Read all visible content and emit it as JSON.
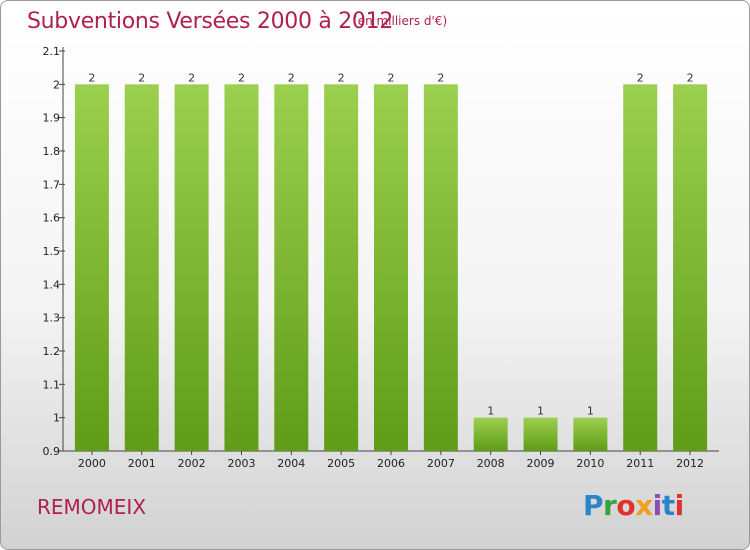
{
  "header": {
    "title": "Subventions Versées 2000 à 2012",
    "unit": "(en milliers d'€)"
  },
  "footer": {
    "commune": "REMOMEIX",
    "logo": "Proxiti",
    "logo_icon": "proxiti-logo-icon"
  },
  "colors": {
    "bar_top": "#9bd04e",
    "bar_bottom": "#5f9c18",
    "title": "#b0204e"
  },
  "chart_data": {
    "type": "bar",
    "categories": [
      "2000",
      "2001",
      "2002",
      "2003",
      "2004",
      "2005",
      "2006",
      "2007",
      "2008",
      "2009",
      "2010",
      "2011",
      "2012"
    ],
    "values": [
      2,
      2,
      2,
      2,
      2,
      2,
      2,
      2,
      1,
      1,
      1,
      2,
      2
    ],
    "data_labels": [
      "2",
      "2",
      "2",
      "2",
      "2",
      "2",
      "2",
      "2",
      "1",
      "1",
      "1",
      "2",
      "2"
    ],
    "title": "Subventions Versées 2000 à 2012",
    "xlabel": "",
    "ylabel": "",
    "ylim": [
      0.9,
      2.1
    ],
    "yticks": [
      0.9,
      1,
      1.1,
      1.2,
      1.3,
      1.4,
      1.5,
      1.6,
      1.7,
      1.8,
      1.9,
      2,
      2.1
    ],
    "ytick_labels": [
      "0.9",
      "1",
      "1.1",
      "1.2",
      "1.3",
      "1.4",
      "1.5",
      "1.6",
      "1.7",
      "1.8",
      "1.9",
      "2",
      "2.1"
    ],
    "grid": false,
    "legend": "none"
  }
}
